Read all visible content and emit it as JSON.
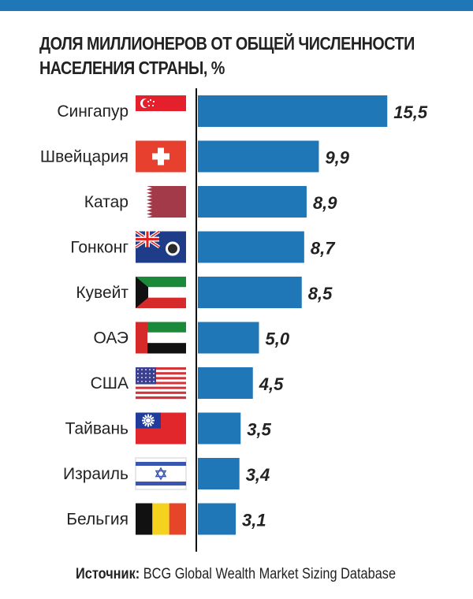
{
  "chart_data": {
    "type": "bar",
    "orientation": "horizontal",
    "title_lines": [
      "ДОЛЯ МИЛЛИОНЕРОВ ОТ ОБЩЕЙ ЧИСЛЕННОСТИ",
      "НАСЕЛЕНИЯ СТРАНЫ, %"
    ],
    "categories": [
      "Сингапур",
      "Швейцария",
      "Катар",
      "Гонконг",
      "Кувейт",
      "ОАЭ",
      "США",
      "Тайвань",
      "Израиль",
      "Бельгия"
    ],
    "values": [
      15.5,
      9.9,
      8.9,
      8.7,
      8.5,
      5.0,
      4.5,
      3.5,
      3.4,
      3.1
    ],
    "value_labels": [
      "15,5",
      "9,9",
      "8,9",
      "8,7",
      "8,5",
      "5,0",
      "4,5",
      "3,5",
      "3,4",
      "3,1"
    ],
    "flags": [
      "singapore-flag",
      "switzerland-flag",
      "qatar-flag",
      "hong-kong-flag",
      "kuwait-flag",
      "uae-flag",
      "usa-flag",
      "taiwan-flag",
      "israel-flag",
      "belgium-flag"
    ],
    "bar_color": "#1f77b8",
    "grid": false
  },
  "source": {
    "label": "Источник:",
    "text": " BCG Global Wealth Market Sizing Database"
  }
}
